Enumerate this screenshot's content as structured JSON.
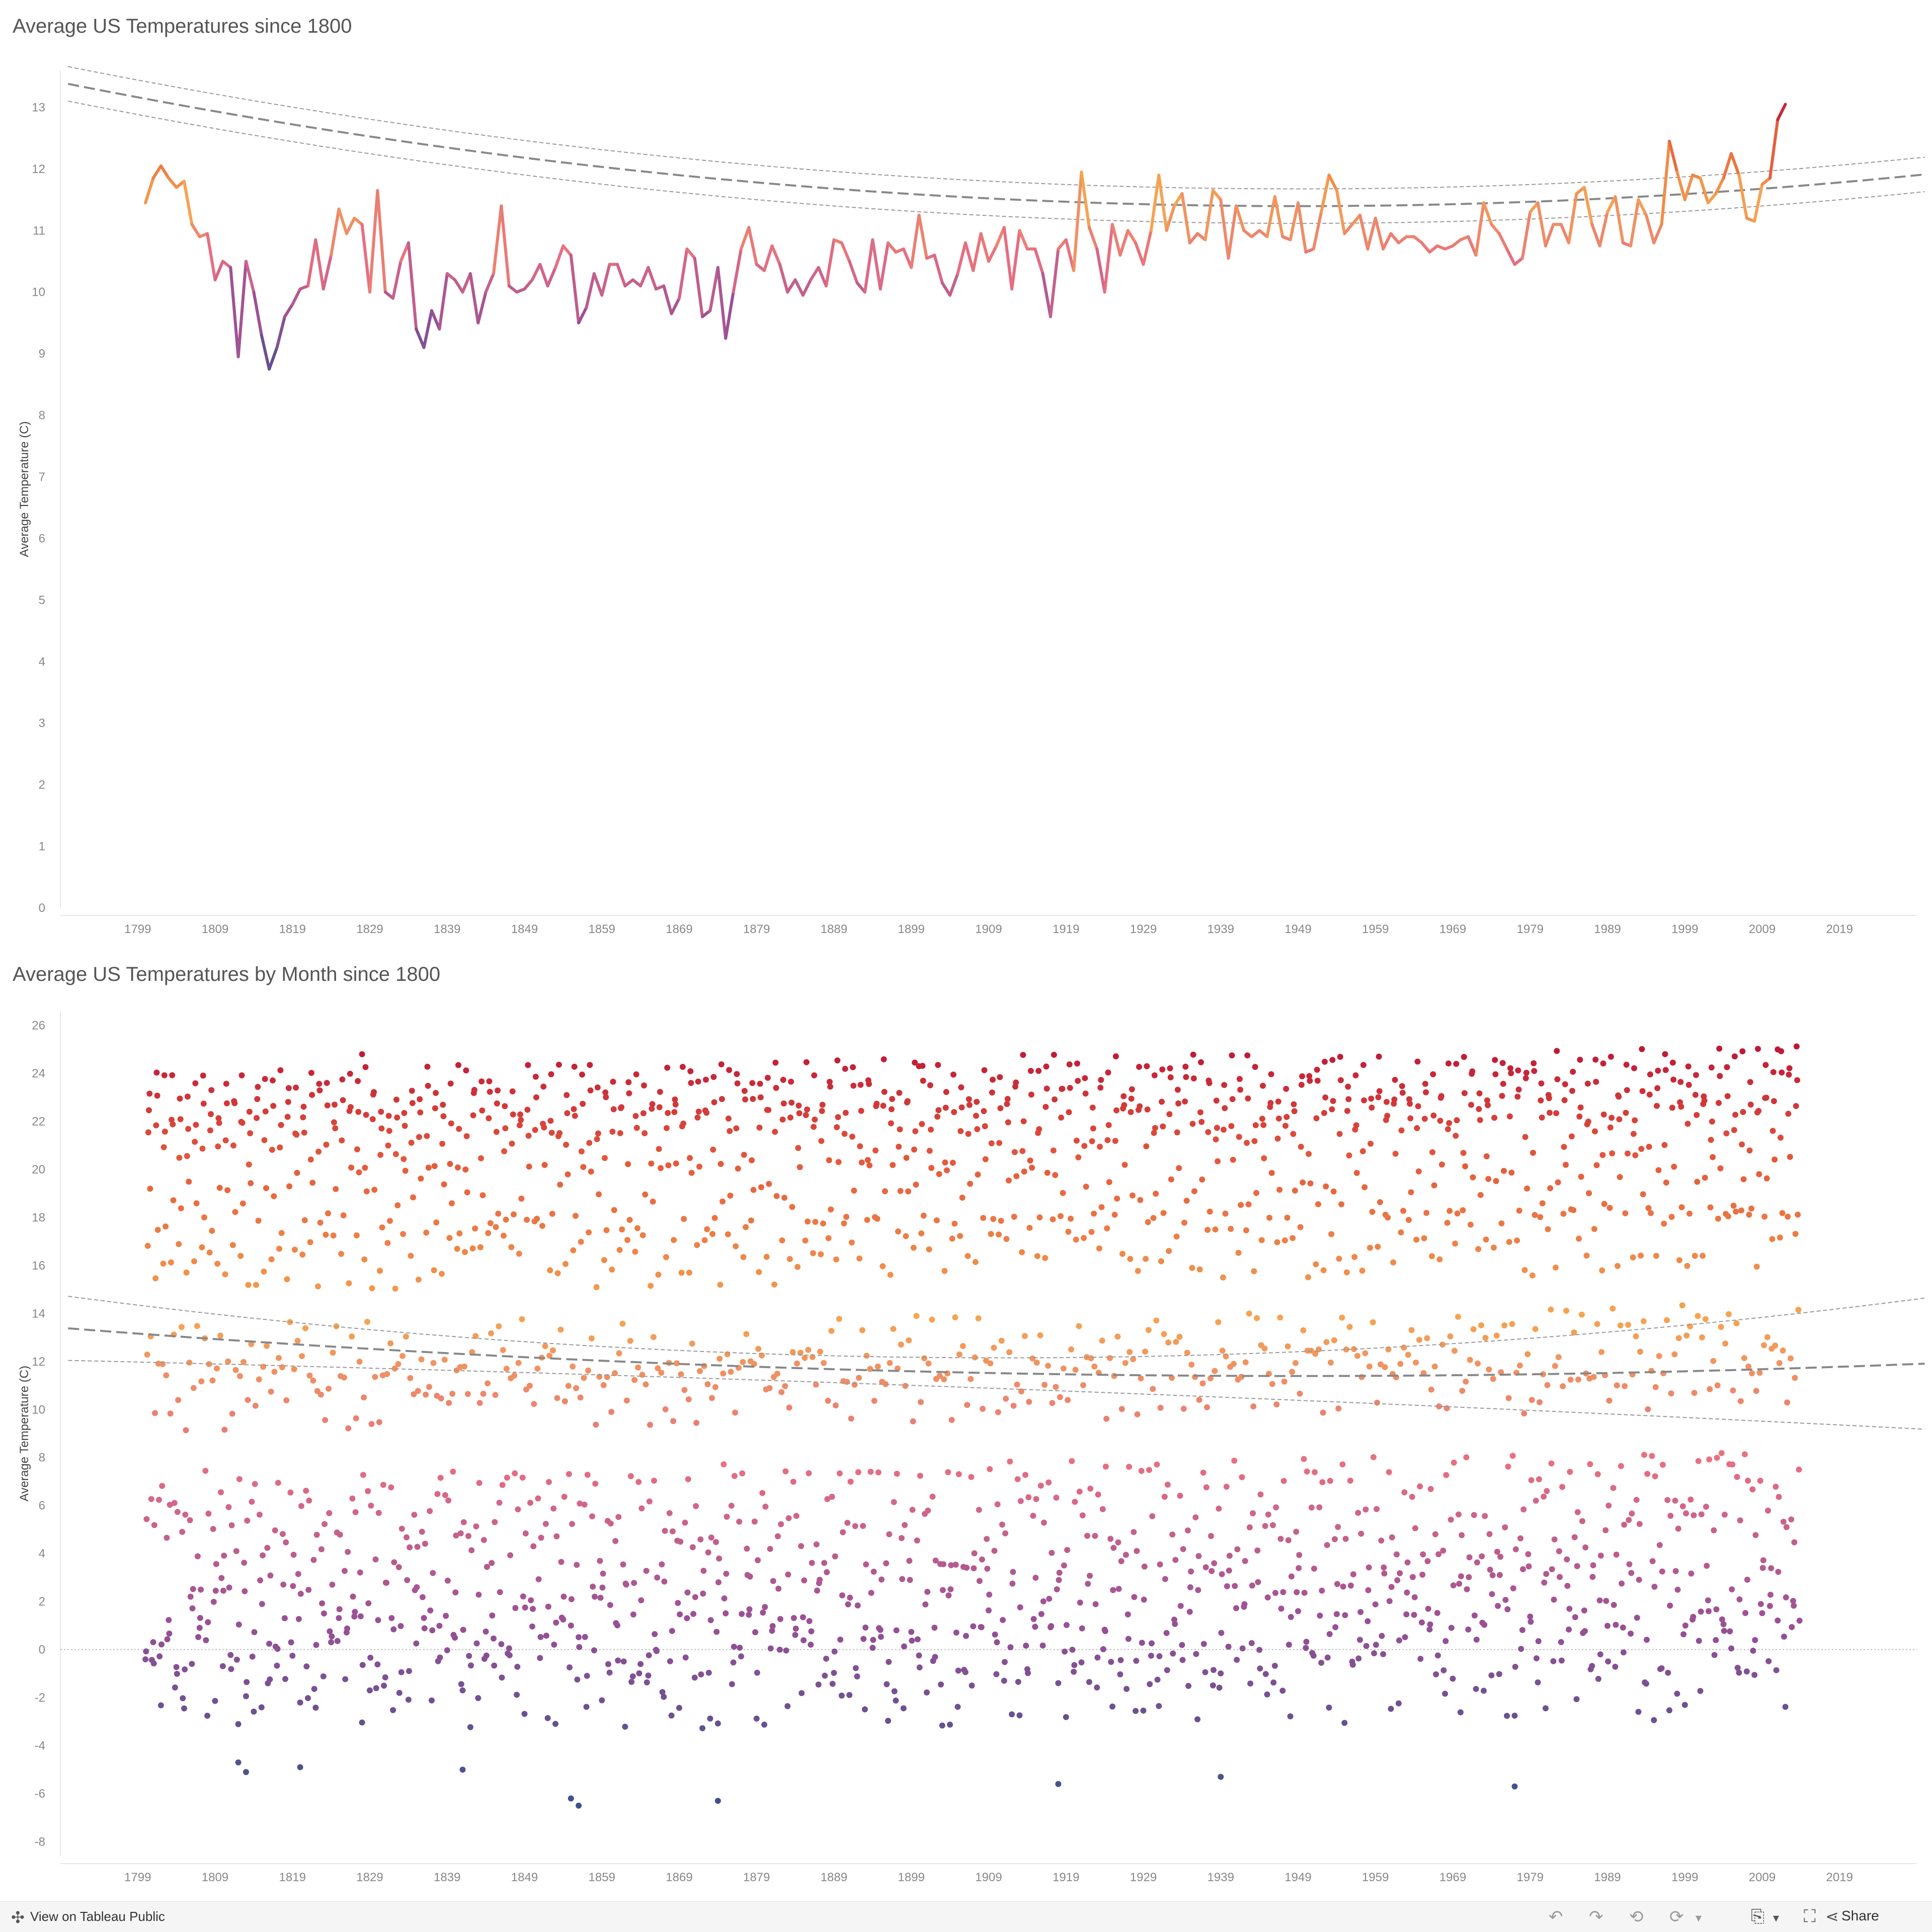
{
  "charts": [
    {
      "title": "Average US Temperatures since 1800",
      "ylabel": "Average Temperature (C)"
    },
    {
      "title": "Average US Temperatures by Month since 1800",
      "ylabel": "Average Temperature (C)"
    }
  ],
  "chart_data": [
    {
      "type": "line",
      "title": "Average US Temperatures since 1800",
      "xlabel": "",
      "ylabel": "Average Temperature (C)",
      "xlim": [
        1789,
        2029
      ],
      "ylim": [
        0,
        13.6
      ],
      "x_ticks": [
        "1799",
        "1809",
        "1819",
        "1829",
        "1839",
        "1849",
        "1859",
        "1869",
        "1879",
        "1889",
        "1899",
        "1909",
        "1919",
        "1929",
        "1939",
        "1949",
        "1959",
        "1969",
        "1979",
        "1989",
        "1999",
        "2009",
        "2019"
      ],
      "y_ticks": [
        "0",
        "1",
        "2",
        "3",
        "4",
        "5",
        "6",
        "7",
        "8",
        "9",
        "10",
        "11",
        "12",
        "13"
      ],
      "grid": false,
      "legend": "none",
      "x_start": 1800,
      "values": [
        11.45,
        11.85,
        12.05,
        11.85,
        11.7,
        11.8,
        11.1,
        10.9,
        10.95,
        10.2,
        10.5,
        10.4,
        8.95,
        10.5,
        10.0,
        9.3,
        8.75,
        9.1,
        9.6,
        9.8,
        10.05,
        10.1,
        10.85,
        10.05,
        10.6,
        11.35,
        10.95,
        11.2,
        11.1,
        10.0,
        11.65,
        10.0,
        9.9,
        10.5,
        10.8,
        9.4,
        9.1,
        9.7,
        9.4,
        10.3,
        10.2,
        10.0,
        10.3,
        9.5,
        10.0,
        10.3,
        11.4,
        10.1,
        10.0,
        10.05,
        10.2,
        10.45,
        10.1,
        10.4,
        10.75,
        10.6,
        9.5,
        9.75,
        10.3,
        9.95,
        10.45,
        10.45,
        10.1,
        10.2,
        10.1,
        10.4,
        10.05,
        10.1,
        9.65,
        9.9,
        10.7,
        10.55,
        9.6,
        9.7,
        10.4,
        9.25,
        10.0,
        10.7,
        11.05,
        10.45,
        10.35,
        10.75,
        10.45,
        10.0,
        10.2,
        9.95,
        10.2,
        10.4,
        10.1,
        10.85,
        10.8,
        10.5,
        10.15,
        10.0,
        10.85,
        10.05,
        10.8,
        10.65,
        10.7,
        10.4,
        11.25,
        10.55,
        10.6,
        10.15,
        9.95,
        10.3,
        10.8,
        10.35,
        10.95,
        10.5,
        10.75,
        11.05,
        10.05,
        11.0,
        10.7,
        10.7,
        10.3,
        9.6,
        10.7,
        10.85,
        10.35,
        11.95,
        11.05,
        10.7,
        10.0,
        11.1,
        10.6,
        11.0,
        10.8,
        10.45,
        11.0,
        11.9,
        11.0,
        11.4,
        11.6,
        10.8,
        10.95,
        10.85,
        11.65,
        11.5,
        10.55,
        11.4,
        11.0,
        10.9,
        11.0,
        10.9,
        11.55,
        10.9,
        10.85,
        11.45,
        10.65,
        10.7,
        11.3,
        11.9,
        11.65,
        10.95,
        11.1,
        11.25,
        10.7,
        11.2,
        10.7,
        10.95,
        10.8,
        10.9,
        10.9,
        10.8,
        10.65,
        10.75,
        10.7,
        10.75,
        10.85,
        10.9,
        10.6,
        11.45,
        11.1,
        10.95,
        10.7,
        10.45,
        10.55,
        11.3,
        11.45,
        10.75,
        11.1,
        11.1,
        10.8,
        11.6,
        11.7,
        11.1,
        10.75,
        11.3,
        11.55,
        10.8,
        10.75,
        11.5,
        11.25,
        10.8,
        11.1,
        12.45,
        11.95,
        11.5,
        11.9,
        11.85,
        11.45,
        11.6,
        11.85,
        12.25,
        11.9,
        11.2,
        11.15,
        11.75,
        11.85,
        12.8,
        13.05
      ],
      "trend": {
        "type": "quadratic",
        "a": 7.85e-05,
        "b": -0.306,
        "c": 309.6,
        "band": 0.28,
        "band_years": [
          1790,
          2030
        ]
      }
    },
    {
      "type": "scatter",
      "title": "Average US Temperatures by Month since 1800",
      "xlabel": "",
      "ylabel": "Average Temperature (C)",
      "xlim": [
        1789,
        2029
      ],
      "ylim": [
        -8.6,
        26.6
      ],
      "x_ticks": [
        "1799",
        "1809",
        "1819",
        "1829",
        "1839",
        "1849",
        "1859",
        "1869",
        "1879",
        "1889",
        "1899",
        "1909",
        "1919",
        "1929",
        "1939",
        "1949",
        "1959",
        "1969",
        "1979",
        "1989",
        "1999",
        "2009",
        "2019"
      ],
      "y_ticks": [
        "-8",
        "-6",
        "-4",
        "-2",
        "0",
        "2",
        "4",
        "6",
        "8",
        "10",
        "12",
        "14",
        "16",
        "18",
        "20",
        "22",
        "24",
        "26"
      ],
      "grid": false,
      "legend": "none",
      "zero_line": true,
      "x_start": 1800,
      "x_end": 2013,
      "monthly_means": [
        -1.2,
        0.8,
        4.8,
        10.7,
        16.3,
        21.1,
        23.2,
        22.3,
        18.6,
        12.0,
        5.2,
        0.4
      ],
      "outliers": [
        {
          "year": 1855,
          "value": -6.2
        },
        {
          "year": 1856,
          "value": -6.5
        },
        {
          "year": 1874,
          "value": -6.3
        },
        {
          "year": 1918,
          "value": -5.6
        },
        {
          "year": 1939,
          "value": -5.3
        },
        {
          "year": 1977,
          "value": -5.7
        },
        {
          "year": 1813,
          "value": -5.1
        },
        {
          "year": 1812,
          "value": -4.7
        },
        {
          "year": 1841,
          "value": -5.0
        },
        {
          "year": 1820,
          "value": -4.9
        },
        {
          "year": 2011,
          "value": 25.0
        },
        {
          "year": 1828,
          "value": 24.8
        },
        {
          "year": 1900,
          "value": 24.3
        }
      ],
      "trend": {
        "type": "quadratic",
        "a": 7.85e-05,
        "b": -0.306,
        "c": 309.6,
        "band_min": 0.55,
        "band_growth": 1.9,
        "band_years": [
          1790,
          2030
        ]
      }
    }
  ],
  "footer": {
    "tableau_link": "View on Tableau Public",
    "share_label": "Share",
    "icons": [
      "tableau-icon",
      "undo-icon",
      "redo-icon",
      "revert-icon",
      "refresh-icon",
      "download-icon",
      "fullscreen-icon",
      "share-icon"
    ]
  }
}
